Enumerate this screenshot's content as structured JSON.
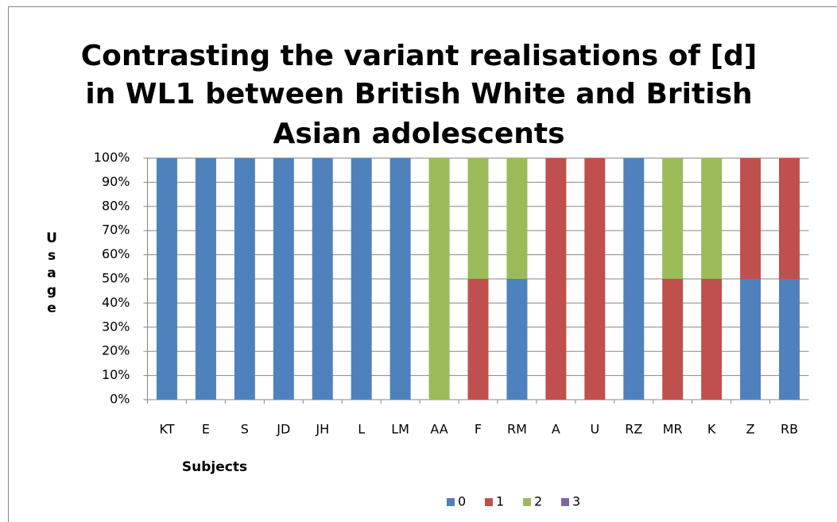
{
  "chart_data": {
    "type": "stacked_bar",
    "title": [
      "Contrasting the variant realisations of [d]",
      "in WL1 between British White and British",
      "Asian adolescents"
    ],
    "ylabel": "Usage",
    "xlabel": "Subjects",
    "categories": [
      "KT",
      "E",
      "S",
      "JD",
      "JH",
      "L",
      "LM",
      "AA",
      "F",
      "RM",
      "A",
      "U",
      "RZ",
      "MR",
      "K",
      "Z",
      "RB"
    ],
    "series": [
      {
        "name": "0",
        "color": "#4f81bd",
        "values": [
          100,
          100,
          100,
          100,
          100,
          100,
          100,
          0,
          0,
          50,
          0,
          0,
          100,
          0,
          0,
          50,
          50
        ]
      },
      {
        "name": "1",
        "color": "#c0504d",
        "values": [
          0,
          0,
          0,
          0,
          0,
          0,
          0,
          0,
          50,
          0,
          100,
          100,
          0,
          50,
          50,
          50,
          50
        ]
      },
      {
        "name": "2",
        "color": "#9bbb59",
        "values": [
          0,
          0,
          0,
          0,
          0,
          0,
          0,
          100,
          50,
          50,
          0,
          0,
          0,
          50,
          50,
          0,
          0
        ]
      },
      {
        "name": "3",
        "color": "#8064a2",
        "values": [
          0,
          0,
          0,
          0,
          0,
          0,
          0,
          0,
          0,
          0,
          0,
          0,
          0,
          0,
          0,
          0,
          0
        ]
      }
    ],
    "ylim": [
      0,
      100
    ],
    "yticks": [
      {
        "value": 0,
        "label": "0%"
      },
      {
        "value": 10,
        "label": "10%"
      },
      {
        "value": 20,
        "label": "20%"
      },
      {
        "value": 30,
        "label": "30%"
      },
      {
        "value": 40,
        "label": "40%"
      },
      {
        "value": 50,
        "label": "50%"
      },
      {
        "value": 60,
        "label": "60%"
      },
      {
        "value": 70,
        "label": "70%"
      },
      {
        "value": 80,
        "label": "80%"
      },
      {
        "value": 90,
        "label": "90%"
      },
      {
        "value": 100,
        "label": "100%"
      }
    ],
    "grid": true,
    "legend": "bottom"
  }
}
